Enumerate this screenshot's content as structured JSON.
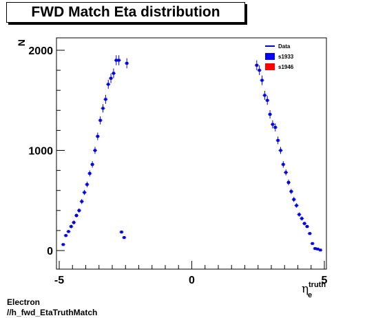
{
  "title": "FWD Match Eta distribution",
  "footer": {
    "line1": "Electron",
    "line2": "//h_fwd_EtaTruthMatch"
  },
  "colors": {
    "data": "#0000cc",
    "s1933": "#0000ff",
    "s1946": "#ff0000",
    "frame": "#000000"
  },
  "chart_data": {
    "type": "scatter",
    "title": "FWD Match Eta distribution",
    "ylabel": "N",
    "xlabel": {
      "base": "η",
      "sub": "e",
      "sup": "truth"
    },
    "xlim": [
      -5,
      5
    ],
    "ylim": [
      -200,
      2080
    ],
    "xticks": [
      -5,
      0,
      5
    ],
    "xtick_labels": [
      "-5",
      "0",
      "5"
    ],
    "yticks": [
      0,
      1000,
      2000
    ],
    "ytick_labels": [
      "0",
      "1000",
      "2000"
    ],
    "grid": false,
    "legend_position": "top-right",
    "legend": [
      {
        "label": "Data",
        "style": "line"
      },
      {
        "label": "s1933",
        "style": "box"
      },
      {
        "label": "s1946",
        "style": "box"
      }
    ],
    "series": [
      {
        "name": "Data",
        "x": [
          -4.85,
          -4.75,
          -4.65,
          -4.55,
          -4.45,
          -4.35,
          -4.25,
          -4.15,
          -4.05,
          -3.95,
          -3.85,
          -3.75,
          -3.65,
          -3.55,
          -3.45,
          -3.35,
          -3.25,
          -3.15,
          -3.05,
          -2.95,
          -2.85,
          -2.75,
          -2.65,
          -2.55,
          -2.45,
          2.45,
          2.55,
          2.65,
          2.75,
          2.85,
          2.95,
          3.05,
          3.15,
          3.25,
          3.35,
          3.45,
          3.55,
          3.65,
          3.75,
          3.85,
          3.95,
          4.05,
          4.15,
          4.25,
          4.35,
          4.45,
          4.55,
          4.65,
          4.75,
          4.85
        ],
        "y": [
          60,
          150,
          190,
          240,
          280,
          350,
          400,
          490,
          580,
          660,
          770,
          860,
          1000,
          1140,
          1300,
          1420,
          1510,
          1660,
          1720,
          1770,
          1900,
          1900,
          185,
          130,
          1870,
          1850,
          1800,
          1700,
          1550,
          1500,
          1360,
          1260,
          1230,
          1100,
          1000,
          860,
          780,
          680,
          590,
          510,
          450,
          360,
          320,
          270,
          240,
          170,
          70,
          20,
          15,
          5
        ],
        "y_err": [
          10,
          15,
          15,
          18,
          20,
          20,
          22,
          25,
          25,
          28,
          30,
          32,
          35,
          38,
          40,
          42,
          45,
          45,
          48,
          48,
          50,
          50,
          15,
          12,
          50,
          50,
          48,
          48,
          45,
          45,
          42,
          40,
          40,
          38,
          35,
          32,
          30,
          28,
          26,
          25,
          22,
          20,
          20,
          18,
          16,
          14,
          10,
          6,
          5,
          4
        ]
      }
    ]
  }
}
